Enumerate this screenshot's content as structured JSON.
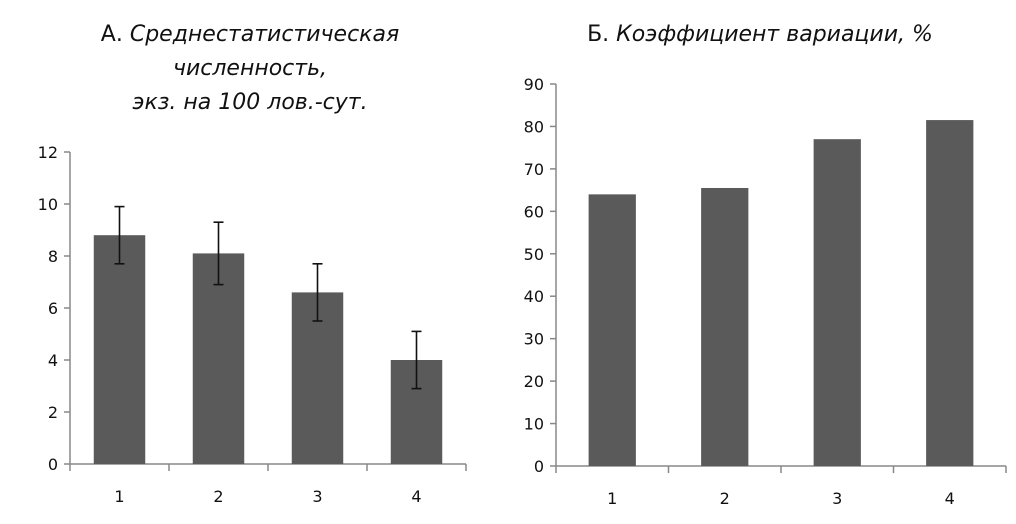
{
  "chart_data": [
    {
      "type": "bar",
      "title_prefix": "А.",
      "title_lines": [
        "Среднестатистическая",
        "численность,",
        "экз. на  100 лов.-сут."
      ],
      "categories": [
        "1",
        "2",
        "3",
        "4"
      ],
      "values": [
        8.8,
        8.1,
        6.6,
        4.0
      ],
      "error": [
        1.1,
        1.2,
        1.1,
        1.1
      ],
      "yticks": [
        0,
        2,
        4,
        6,
        8,
        10,
        12
      ],
      "ylim": [
        0,
        12
      ],
      "xlabel": "",
      "ylabel": "",
      "grid": false,
      "colors": {
        "bar": "#5a5a5a",
        "axis": "#888888",
        "errorbar": "#111111"
      }
    },
    {
      "type": "bar",
      "title_prefix": "Б.",
      "title_lines": [
        "Коэффициент вариации, %"
      ],
      "categories": [
        "1",
        "2",
        "3",
        "4"
      ],
      "values": [
        64,
        65.5,
        77,
        81.5
      ],
      "yticks": [
        0,
        10,
        20,
        30,
        40,
        50,
        60,
        70,
        80,
        90
      ],
      "ylim": [
        0,
        90
      ],
      "xlabel": "",
      "ylabel": "",
      "grid": false,
      "colors": {
        "bar": "#5a5a5a",
        "axis": "#888888"
      }
    }
  ]
}
